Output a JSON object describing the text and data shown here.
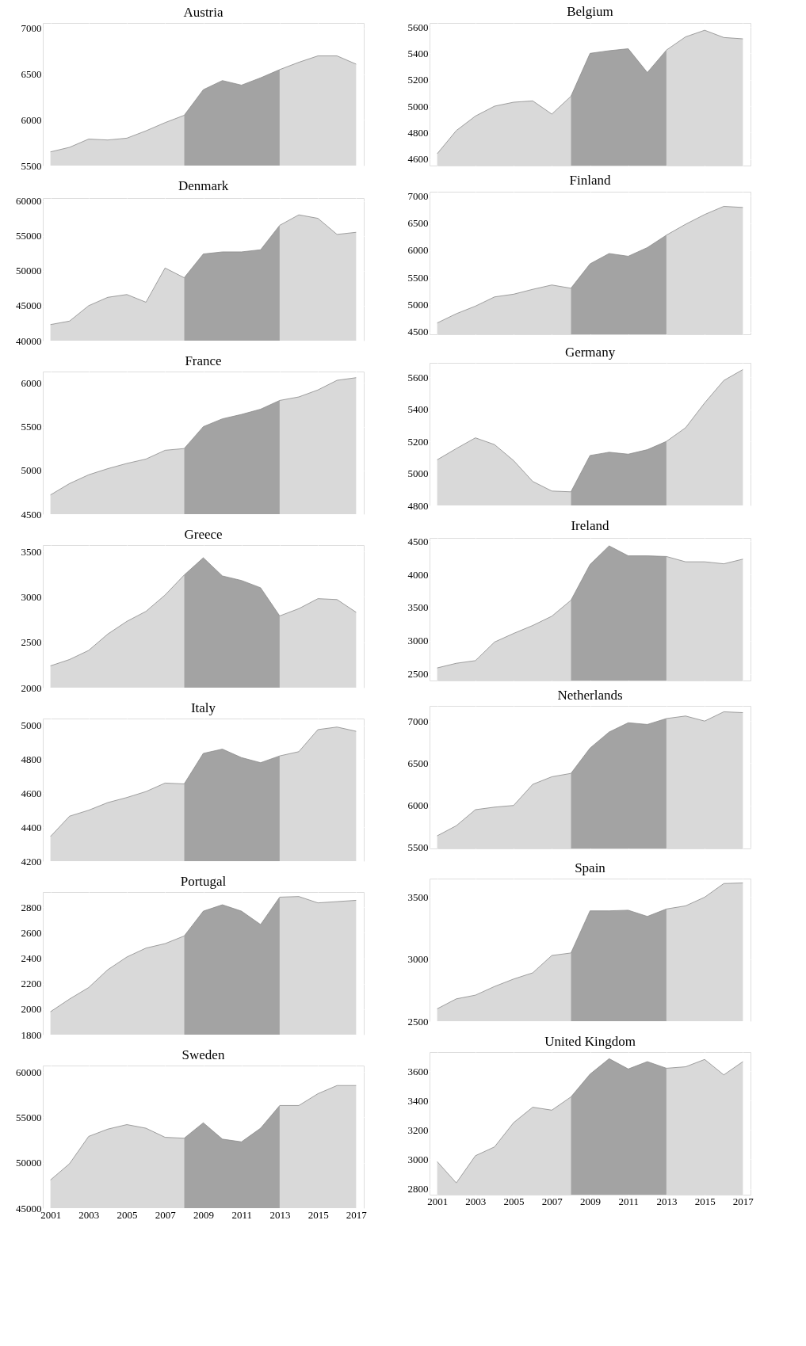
{
  "chart_data": [
    {
      "type": "area",
      "title": "Austria",
      "xlim": [
        2000.6,
        2017.4
      ],
      "xticks": [
        2001,
        2003,
        2005,
        2007,
        2009,
        2011,
        2013,
        2015,
        2017
      ],
      "ylim": [
        5500,
        7060
      ],
      "yticks": [
        5500,
        6000,
        6500,
        7000
      ],
      "grid": true,
      "tick_labels": "y",
      "series": [
        {
          "color": "#d9d9d9",
          "x": [
            2001,
            2002,
            2003,
            2004,
            2005,
            2006,
            2007,
            2008
          ],
          "values": [
            5650,
            5700,
            5790,
            5780,
            5800,
            5880,
            5970,
            6050
          ]
        },
        {
          "color": "#a3a3a3",
          "x": [
            2008,
            2009,
            2010,
            2011,
            2012,
            2013
          ],
          "values": [
            6050,
            6330,
            6430,
            6380,
            6460,
            6550
          ]
        },
        {
          "color": "#d9d9d9",
          "x": [
            2013,
            2014,
            2015,
            2016,
            2017
          ],
          "values": [
            6550,
            6630,
            6700,
            6700,
            6610
          ]
        }
      ]
    },
    {
      "type": "area",
      "title": "Belgium",
      "xlim": [
        2000.6,
        2017.4
      ],
      "xticks": [
        2001,
        2003,
        2005,
        2007,
        2009,
        2011,
        2013,
        2015,
        2017
      ],
      "ylim": [
        4550,
        5630
      ],
      "yticks": [
        4600,
        4800,
        5000,
        5200,
        5400,
        5600
      ],
      "grid": true,
      "tick_labels": "y",
      "series": [
        {
          "color": "#d9d9d9",
          "x": [
            2001,
            2002,
            2003,
            2004,
            2005,
            2006,
            2007,
            2008
          ],
          "values": [
            4640,
            4815,
            4925,
            5000,
            5030,
            5040,
            4940,
            5075
          ]
        },
        {
          "color": "#a3a3a3",
          "x": [
            2008,
            2009,
            2010,
            2011,
            2012,
            2013
          ],
          "values": [
            5075,
            5400,
            5420,
            5435,
            5255,
            5425
          ]
        },
        {
          "color": "#d9d9d9",
          "x": [
            2013,
            2014,
            2015,
            2016,
            2017
          ],
          "values": [
            5425,
            5525,
            5575,
            5520,
            5510
          ]
        }
      ]
    },
    {
      "type": "area",
      "title": "Denmark",
      "xlim": [
        2000.6,
        2017.4
      ],
      "xticks": [
        2001,
        2003,
        2005,
        2007,
        2009,
        2011,
        2013,
        2015,
        2017
      ],
      "ylim": [
        40000,
        60400
      ],
      "yticks": [
        40000,
        45000,
        50000,
        55000,
        60000
      ],
      "grid": true,
      "tick_labels": "y",
      "series": [
        {
          "color": "#d9d9d9",
          "x": [
            2001,
            2002,
            2003,
            2004,
            2005,
            2006,
            2007,
            2008
          ],
          "values": [
            42300,
            42800,
            45000,
            46200,
            46600,
            45500,
            50400,
            49000
          ]
        },
        {
          "color": "#a3a3a3",
          "x": [
            2008,
            2009,
            2010,
            2011,
            2012,
            2013
          ],
          "values": [
            49000,
            52400,
            52700,
            52700,
            53000,
            56500
          ]
        },
        {
          "color": "#d9d9d9",
          "x": [
            2013,
            2014,
            2015,
            2016,
            2017
          ],
          "values": [
            56500,
            58000,
            57500,
            55200,
            55500
          ]
        }
      ]
    },
    {
      "type": "area",
      "title": "Finland",
      "xlim": [
        2000.6,
        2017.4
      ],
      "xticks": [
        2001,
        2003,
        2005,
        2007,
        2009,
        2011,
        2013,
        2015,
        2017
      ],
      "ylim": [
        4450,
        7080
      ],
      "yticks": [
        4500,
        5000,
        5500,
        6000,
        6500,
        7000
      ],
      "grid": true,
      "tick_labels": "y",
      "series": [
        {
          "color": "#d9d9d9",
          "x": [
            2001,
            2002,
            2003,
            2004,
            2005,
            2006,
            2007,
            2008
          ],
          "values": [
            4660,
            4830,
            4970,
            5140,
            5190,
            5280,
            5360,
            5300
          ]
        },
        {
          "color": "#a3a3a3",
          "x": [
            2008,
            2009,
            2010,
            2011,
            2012,
            2013
          ],
          "values": [
            5300,
            5750,
            5940,
            5890,
            6050,
            6280
          ]
        },
        {
          "color": "#d9d9d9",
          "x": [
            2013,
            2014,
            2015,
            2016,
            2017
          ],
          "values": [
            6280,
            6480,
            6660,
            6810,
            6790
          ]
        }
      ]
    },
    {
      "type": "area",
      "title": "France",
      "xlim": [
        2000.6,
        2017.4
      ],
      "xticks": [
        2001,
        2003,
        2005,
        2007,
        2009,
        2011,
        2013,
        2015,
        2017
      ],
      "ylim": [
        4500,
        6130
      ],
      "yticks": [
        4500,
        5000,
        5500,
        6000
      ],
      "grid": true,
      "tick_labels": "y",
      "series": [
        {
          "color": "#d9d9d9",
          "x": [
            2001,
            2002,
            2003,
            2004,
            2005,
            2006,
            2007,
            2008
          ],
          "values": [
            4720,
            4850,
            4950,
            5020,
            5080,
            5130,
            5230,
            5250
          ]
        },
        {
          "color": "#a3a3a3",
          "x": [
            2008,
            2009,
            2010,
            2011,
            2012,
            2013
          ],
          "values": [
            5250,
            5500,
            5590,
            5640,
            5700,
            5800
          ]
        },
        {
          "color": "#d9d9d9",
          "x": [
            2013,
            2014,
            2015,
            2016,
            2017
          ],
          "values": [
            5800,
            5840,
            5920,
            6030,
            6060
          ]
        }
      ]
    },
    {
      "type": "area",
      "title": "Germany",
      "xlim": [
        2000.6,
        2017.4
      ],
      "xticks": [
        2001,
        2003,
        2005,
        2007,
        2009,
        2011,
        2013,
        2015,
        2017
      ],
      "ylim": [
        4800,
        5690
      ],
      "yticks": [
        4800,
        5000,
        5200,
        5400,
        5600
      ],
      "grid": true,
      "tick_labels": "y",
      "series": [
        {
          "color": "#d9d9d9",
          "x": [
            2001,
            2002,
            2003,
            2004,
            2005,
            2006,
            2007,
            2008
          ],
          "values": [
            5085,
            5155,
            5222,
            5180,
            5080,
            4950,
            4890,
            4885
          ]
        },
        {
          "color": "#a3a3a3",
          "x": [
            2008,
            2009,
            2010,
            2011,
            2012,
            2013
          ],
          "values": [
            4885,
            5112,
            5132,
            5120,
            5148,
            5200
          ]
        },
        {
          "color": "#d9d9d9",
          "x": [
            2013,
            2014,
            2015,
            2016,
            2017
          ],
          "values": [
            5200,
            5285,
            5440,
            5580,
            5648
          ]
        }
      ]
    },
    {
      "type": "area",
      "title": "Greece",
      "xlim": [
        2000.6,
        2017.4
      ],
      "xticks": [
        2001,
        2003,
        2005,
        2007,
        2009,
        2011,
        2013,
        2015,
        2017
      ],
      "ylim": [
        2000,
        3570
      ],
      "yticks": [
        2000,
        2500,
        3000,
        3500
      ],
      "grid": true,
      "tick_labels": "y",
      "series": [
        {
          "color": "#d9d9d9",
          "x": [
            2001,
            2002,
            2003,
            2004,
            2005,
            2006,
            2007,
            2008
          ],
          "values": [
            2240,
            2310,
            2410,
            2590,
            2730,
            2840,
            3020,
            3240
          ]
        },
        {
          "color": "#a3a3a3",
          "x": [
            2008,
            2009,
            2010,
            2011,
            2012,
            2013
          ],
          "values": [
            3240,
            3430,
            3230,
            3180,
            3100,
            2790
          ]
        },
        {
          "color": "#d9d9d9",
          "x": [
            2013,
            2014,
            2015,
            2016,
            2017
          ],
          "values": [
            2790,
            2870,
            2980,
            2970,
            2830
          ]
        }
      ]
    },
    {
      "type": "area",
      "title": "Ireland",
      "xlim": [
        2000.6,
        2017.4
      ],
      "xticks": [
        2001,
        2003,
        2005,
        2007,
        2009,
        2011,
        2013,
        2015,
        2017
      ],
      "ylim": [
        2400,
        4550
      ],
      "yticks": [
        2500,
        3000,
        3500,
        4000,
        4500
      ],
      "grid": true,
      "tick_labels": "y",
      "series": [
        {
          "color": "#d9d9d9",
          "x": [
            2001,
            2002,
            2003,
            2004,
            2005,
            2006,
            2007,
            2008
          ],
          "values": [
            2590,
            2660,
            2700,
            2980,
            3110,
            3230,
            3370,
            3610
          ]
        },
        {
          "color": "#a3a3a3",
          "x": [
            2008,
            2009,
            2010,
            2011,
            2012,
            2013
          ],
          "values": [
            3610,
            4150,
            4430,
            4280,
            4280,
            4270
          ]
        },
        {
          "color": "#d9d9d9",
          "x": [
            2013,
            2014,
            2015,
            2016,
            2017
          ],
          "values": [
            4270,
            4190,
            4190,
            4160,
            4230
          ]
        }
      ]
    },
    {
      "type": "area",
      "title": "Italy",
      "xlim": [
        2000.6,
        2017.4
      ],
      "xticks": [
        2001,
        2003,
        2005,
        2007,
        2009,
        2011,
        2013,
        2015,
        2017
      ],
      "ylim": [
        4200,
        5040
      ],
      "yticks": [
        4200,
        4400,
        4600,
        4800,
        5000
      ],
      "grid": true,
      "tick_labels": "y",
      "series": [
        {
          "color": "#d9d9d9",
          "x": [
            2001,
            2002,
            2003,
            2004,
            2005,
            2006,
            2007,
            2008
          ],
          "values": [
            4345,
            4465,
            4500,
            4545,
            4575,
            4610,
            4660,
            4655
          ]
        },
        {
          "color": "#a3a3a3",
          "x": [
            2008,
            2009,
            2010,
            2011,
            2012,
            2013
          ],
          "values": [
            4655,
            4835,
            4860,
            4810,
            4780,
            4820
          ]
        },
        {
          "color": "#d9d9d9",
          "x": [
            2013,
            2014,
            2015,
            2016,
            2017
          ],
          "values": [
            4820,
            4845,
            4975,
            4990,
            4965
          ]
        }
      ]
    },
    {
      "type": "area",
      "title": "Netherlands",
      "xlim": [
        2000.6,
        2017.4
      ],
      "xticks": [
        2001,
        2003,
        2005,
        2007,
        2009,
        2011,
        2013,
        2015,
        2017
      ],
      "ylim": [
        5490,
        7180
      ],
      "yticks": [
        5500,
        6000,
        6500,
        7000
      ],
      "grid": true,
      "tick_labels": "y",
      "series": [
        {
          "color": "#d9d9d9",
          "x": [
            2001,
            2002,
            2003,
            2004,
            2005,
            2006,
            2007,
            2008
          ],
          "values": [
            5640,
            5760,
            5950,
            5980,
            6000,
            6250,
            6340,
            6380
          ]
        },
        {
          "color": "#a3a3a3",
          "x": [
            2008,
            2009,
            2010,
            2011,
            2012,
            2013
          ],
          "values": [
            6380,
            6680,
            6870,
            6980,
            6960,
            7030
          ]
        },
        {
          "color": "#d9d9d9",
          "x": [
            2013,
            2014,
            2015,
            2016,
            2017
          ],
          "values": [
            7030,
            7060,
            7000,
            7110,
            7100
          ]
        }
      ]
    },
    {
      "type": "area",
      "title": "Portugal",
      "xlim": [
        2000.6,
        2017.4
      ],
      "xticks": [
        2001,
        2003,
        2005,
        2007,
        2009,
        2011,
        2013,
        2015,
        2017
      ],
      "ylim": [
        1800,
        2920
      ],
      "yticks": [
        1800,
        2000,
        2200,
        2400,
        2600,
        2800
      ],
      "grid": true,
      "tick_labels": "y",
      "series": [
        {
          "color": "#d9d9d9",
          "x": [
            2001,
            2002,
            2003,
            2004,
            2005,
            2006,
            2007,
            2008
          ],
          "values": [
            1980,
            2080,
            2170,
            2310,
            2410,
            2480,
            2515,
            2575
          ]
        },
        {
          "color": "#a3a3a3",
          "x": [
            2008,
            2009,
            2010,
            2011,
            2012,
            2013
          ],
          "values": [
            2575,
            2770,
            2820,
            2770,
            2665,
            2880
          ]
        },
        {
          "color": "#d9d9d9",
          "x": [
            2013,
            2014,
            2015,
            2016,
            2017
          ],
          "values": [
            2880,
            2885,
            2835,
            2845,
            2855
          ]
        }
      ]
    },
    {
      "type": "area",
      "title": "Spain",
      "xlim": [
        2000.6,
        2017.4
      ],
      "xticks": [
        2001,
        2003,
        2005,
        2007,
        2009,
        2011,
        2013,
        2015,
        2017
      ],
      "ylim": [
        2500,
        3650
      ],
      "yticks": [
        2500,
        3000,
        3500
      ],
      "grid": true,
      "tick_labels": "y",
      "series": [
        {
          "color": "#d9d9d9",
          "x": [
            2001,
            2002,
            2003,
            2004,
            2005,
            2006,
            2007,
            2008
          ],
          "values": [
            2600,
            2680,
            2710,
            2780,
            2840,
            2890,
            3030,
            3050
          ]
        },
        {
          "color": "#a3a3a3",
          "x": [
            2008,
            2009,
            2010,
            2011,
            2012,
            2013
          ],
          "values": [
            3050,
            3390,
            3390,
            3395,
            3345,
            3405
          ]
        },
        {
          "color": "#d9d9d9",
          "x": [
            2013,
            2014,
            2015,
            2016,
            2017
          ],
          "values": [
            3405,
            3430,
            3500,
            3610,
            3615
          ]
        }
      ]
    },
    {
      "type": "area",
      "title": "Sweden",
      "xlim": [
        2000.6,
        2017.4
      ],
      "xticks": [
        2001,
        2003,
        2005,
        2007,
        2009,
        2011,
        2013,
        2015,
        2017
      ],
      "ylim": [
        45000,
        60700
      ],
      "yticks": [
        45000,
        50000,
        55000,
        60000
      ],
      "grid": true,
      "series": [
        {
          "color": "#d9d9d9",
          "x": [
            2001,
            2002,
            2003,
            2004,
            2005,
            2006,
            2007,
            2008
          ],
          "values": [
            48100,
            49900,
            52900,
            53700,
            54200,
            53800,
            52800,
            52700
          ]
        },
        {
          "color": "#a3a3a3",
          "x": [
            2008,
            2009,
            2010,
            2011,
            2012,
            2013
          ],
          "values": [
            52700,
            54400,
            52600,
            52300,
            53800,
            56300
          ]
        },
        {
          "color": "#d9d9d9",
          "x": [
            2013,
            2014,
            2015,
            2016,
            2017
          ],
          "values": [
            56300,
            56300,
            57600,
            58500,
            58500
          ]
        }
      ]
    },
    {
      "type": "area",
      "title": "United Kingdom",
      "xlim": [
        2000.6,
        2017.4
      ],
      "xticks": [
        2001,
        2003,
        2005,
        2007,
        2009,
        2011,
        2013,
        2015,
        2017
      ],
      "ylim": [
        2760,
        3730
      ],
      "yticks": [
        2800,
        3000,
        3200,
        3400,
        3600
      ],
      "grid": true,
      "series": [
        {
          "color": "#d9d9d9",
          "x": [
            2001,
            2002,
            2003,
            2004,
            2005,
            2006,
            2007,
            2008
          ],
          "values": [
            2985,
            2840,
            3025,
            3085,
            3250,
            3355,
            3335,
            3425
          ]
        },
        {
          "color": "#a3a3a3",
          "x": [
            2008,
            2009,
            2010,
            2011,
            2012,
            2013
          ],
          "values": [
            3425,
            3580,
            3685,
            3615,
            3665,
            3620
          ]
        },
        {
          "color": "#d9d9d9",
          "x": [
            2013,
            2014,
            2015,
            2016,
            2017
          ],
          "values": [
            3620,
            3630,
            3680,
            3575,
            3665
          ]
        }
      ]
    }
  ]
}
